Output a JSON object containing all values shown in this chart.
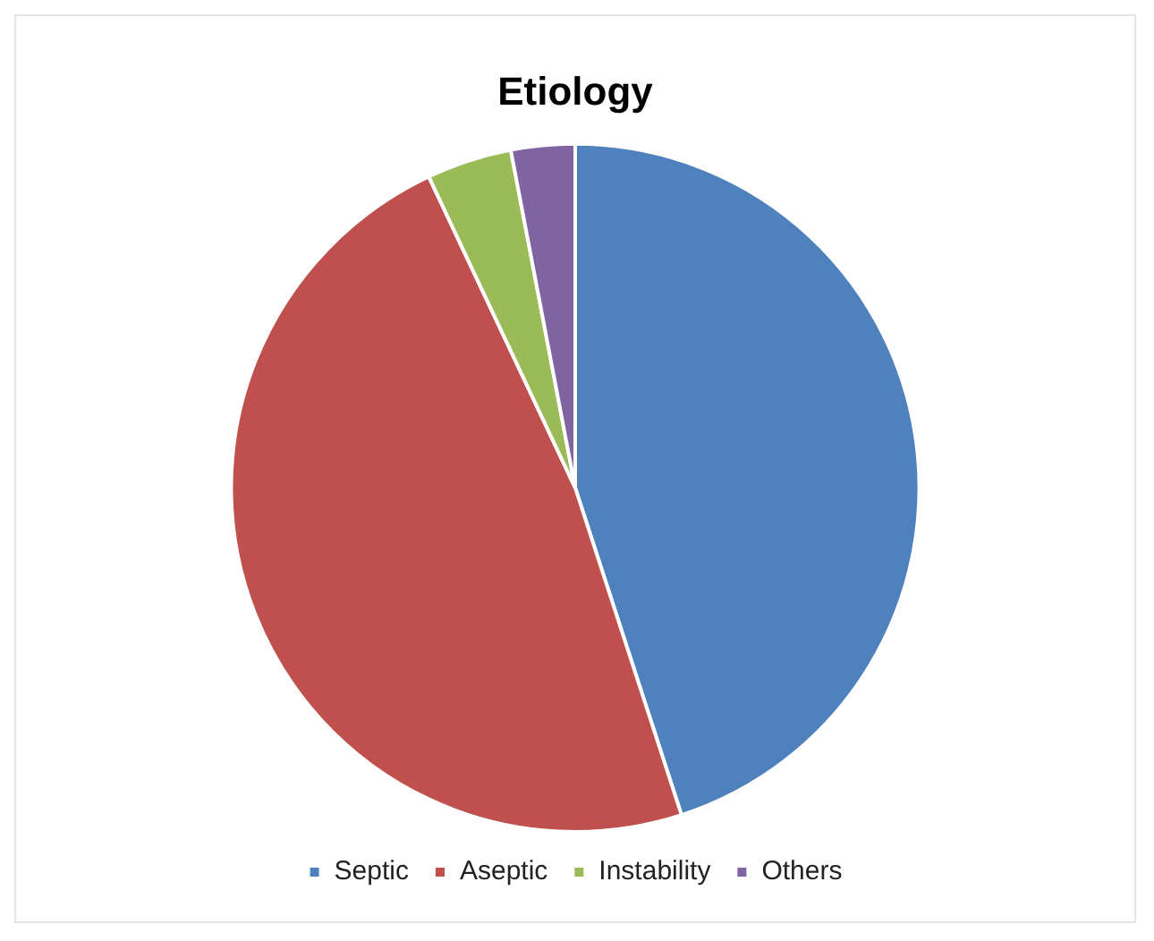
{
  "chart_data": {
    "type": "pie",
    "title": "Etiology",
    "categories": [
      "Septic",
      "Aseptic",
      "Instability",
      "Others"
    ],
    "values": [
      45,
      48,
      4,
      3
    ],
    "colors": [
      "#4f81bd",
      "#c0504d",
      "#9bbb59",
      "#8064a2"
    ],
    "legend": "bottom"
  }
}
